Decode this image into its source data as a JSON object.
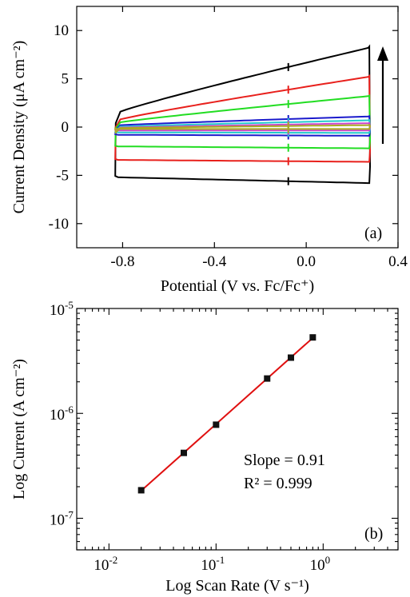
{
  "chart_data": [
    {
      "type": "line",
      "panel_label": "(a)",
      "xlabel": "Potential (V vs. Fc/Fc⁺)",
      "ylabel": "Current Density (μA cm⁻²)",
      "xlim": [
        -1.0,
        0.4
      ],
      "ylim": [
        -12.5,
        12.5
      ],
      "xticks": [
        -0.8,
        -0.4,
        0.0,
        0.4
      ],
      "xtick_labels": [
        "-0.8",
        "-0.4",
        "0.0",
        "0.4"
      ],
      "yticks": [
        -10,
        -5,
        0,
        5,
        10
      ],
      "ytick_labels": [
        "-10",
        "-5",
        "0",
        "5",
        "10"
      ],
      "grid": false,
      "legend": "none",
      "arrow_direction": "up",
      "series": [
        {
          "color": "#000000",
          "anodic_start": 1.6,
          "anodic_end": 8.2,
          "cathodic_start": -5.2,
          "cathodic_end": -5.8
        },
        {
          "color": "#e8201c",
          "anodic_start": 0.8,
          "anodic_end": 5.2,
          "cathodic_start": -3.4,
          "cathodic_end": -3.6
        },
        {
          "color": "#22dd22",
          "anodic_start": 0.5,
          "anodic_end": 3.2,
          "cathodic_start": -2.0,
          "cathodic_end": -2.2
        },
        {
          "color": "#1a1acc",
          "anodic_start": 0.2,
          "anodic_end": 1.1,
          "cathodic_start": -0.8,
          "cathodic_end": -0.9
        },
        {
          "color": "#22cccc",
          "anodic_start": 0.05,
          "anodic_end": 0.7,
          "cathodic_start": -0.55,
          "cathodic_end": -0.6
        },
        {
          "color": "#cc44cc",
          "anodic_start": -0.05,
          "anodic_end": 0.4,
          "cathodic_start": -0.35,
          "cathodic_end": -0.35
        },
        {
          "color": "#aaaa22",
          "anodic_start": -0.1,
          "anodic_end": 0.2,
          "cathodic_start": -0.2,
          "cathodic_end": -0.2
        }
      ]
    },
    {
      "type": "scatter",
      "panel_label": "(b)",
      "xlabel": "Log Scan Rate (V s⁻¹)",
      "ylabel": "Log Current (A cm⁻²)",
      "xscale": "log",
      "yscale": "log",
      "xlim": [
        0.005,
        5
      ],
      "ylim": [
        5e-08,
        1e-05
      ],
      "xticks": [
        0.01,
        0.1,
        1
      ],
      "xtick_bases": [
        "10",
        "10",
        "10"
      ],
      "xtick_exponents": [
        "-2",
        "-1",
        "0"
      ],
      "yticks": [
        1e-07,
        1e-06,
        1e-05
      ],
      "ytick_bases": [
        "10",
        "10",
        "10"
      ],
      "ytick_exponents": [
        "-7",
        "-6",
        "-5"
      ],
      "x": [
        0.02,
        0.05,
        0.1,
        0.3,
        0.5,
        0.8
      ],
      "y": [
        1.85e-07,
        4.2e-07,
        7.8e-07,
        2.15e-06,
        3.4e-06,
        5.3e-06
      ],
      "marker_color": "#111111",
      "fit_color": "#e01010",
      "annotations": [
        "Slope = 0.91",
        "R² = 0.999"
      ],
      "grid": false,
      "legend": "none"
    }
  ]
}
